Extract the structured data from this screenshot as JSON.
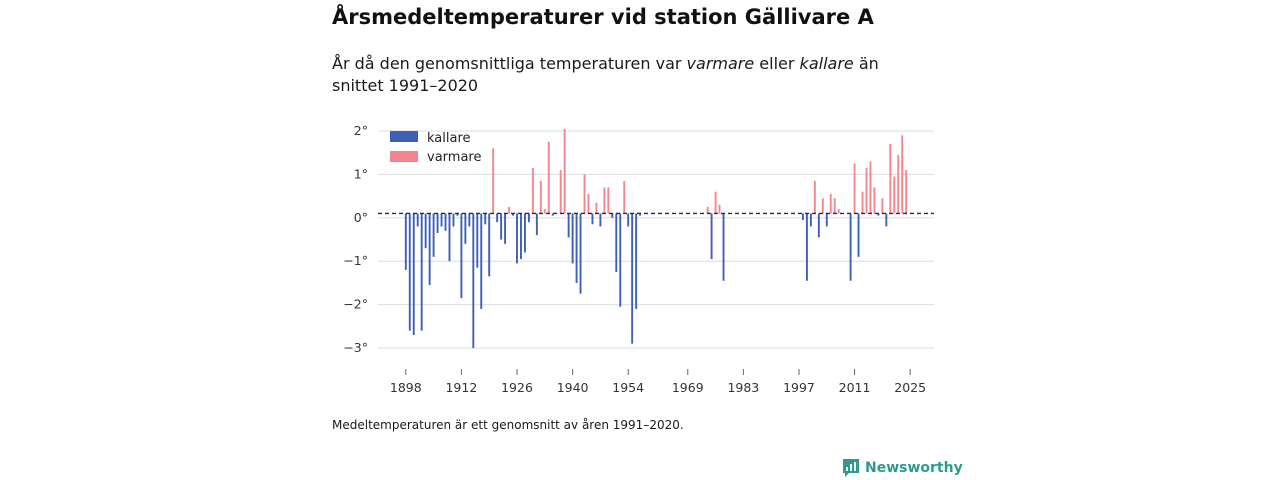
{
  "title": "Årsmedeltemperaturer vid station Gällivare A",
  "subtitle": {
    "part1": "År då den genomsnittliga temperaturen var ",
    "warm_word": "varmare",
    "part2": " eller ",
    "cold_word": "kallare",
    "part3": " än snittet 1991–2020"
  },
  "footnote": "Medeltemperaturen är ett genomsnitt av åren 1991–2020.",
  "brand": "Newsworthy",
  "colors": {
    "warm": "#f4858f",
    "cold": "#3e5fb6",
    "brand": "#2c9a8f"
  },
  "chart_data": {
    "type": "bar",
    "title": "Årsmedeltemperaturer vid station Gällivare A",
    "xlabel": "",
    "ylabel": "",
    "xlim": [
      1891,
      2031
    ],
    "ylim": [
      -3.1,
      2.1
    ],
    "baseline": 0.1,
    "x_ticks": [
      1898,
      1912,
      1926,
      1940,
      1954,
      1969,
      1983,
      1997,
      2011,
      2025
    ],
    "y_ticks": [
      2,
      1,
      0,
      -1,
      -2,
      -3
    ],
    "y_tick_labels": [
      "2°",
      "1°",
      "0°",
      "−1°",
      "−2°",
      "−3°"
    ],
    "legend": [
      {
        "name": "kallare",
        "color": "#3e5fb6"
      },
      {
        "name": "varmare",
        "color": "#f4858f"
      }
    ],
    "legend_position": "top-left",
    "years": [
      1898,
      1899,
      1900,
      1901,
      1902,
      1903,
      1904,
      1905,
      1906,
      1907,
      1908,
      1909,
      1910,
      1911,
      1912,
      1913,
      1914,
      1915,
      1916,
      1917,
      1918,
      1919,
      1920,
      1921,
      1922,
      1923,
      1924,
      1925,
      1926,
      1927,
      1928,
      1929,
      1930,
      1931,
      1932,
      1933,
      1934,
      1935,
      1936,
      1937,
      1938,
      1939,
      1940,
      1941,
      1942,
      1943,
      1944,
      1945,
      1946,
      1947,
      1948,
      1949,
      1950,
      1951,
      1952,
      1953,
      1954,
      1955,
      1956,
      1957,
      1974,
      1975,
      1976,
      1977,
      1978,
      1998,
      1999,
      2000,
      2001,
      2002,
      2003,
      2004,
      2005,
      2006,
      2007,
      2010,
      2011,
      2012,
      2013,
      2014,
      2015,
      2016,
      2017,
      2018,
      2019,
      2020,
      2021,
      2022,
      2023,
      2024
    ],
    "values": [
      -1.2,
      -2.6,
      -2.7,
      -0.2,
      -2.6,
      -0.7,
      -1.55,
      -0.9,
      -0.35,
      -0.2,
      -0.3,
      -1.0,
      -0.2,
      0.05,
      -1.85,
      -0.6,
      -0.2,
      -3.0,
      -1.15,
      -2.1,
      -0.15,
      -1.35,
      1.6,
      -0.1,
      -0.5,
      -0.6,
      0.25,
      0.05,
      -1.05,
      -0.95,
      -0.8,
      -0.1,
      1.15,
      -0.4,
      0.85,
      0.2,
      1.75,
      0.05,
      0.1,
      1.1,
      2.05,
      -0.45,
      -1.05,
      -1.5,
      -1.75,
      1.0,
      0.55,
      -0.15,
      0.35,
      -0.2,
      0.7,
      0.7,
      0.0,
      -1.25,
      -2.05,
      0.85,
      -0.2,
      -2.9,
      -2.1,
      0.05,
      0.25,
      -0.95,
      0.6,
      0.3,
      -1.45,
      -0.05,
      -1.45,
      -0.2,
      0.85,
      -0.45,
      0.45,
      -0.2,
      0.55,
      0.45,
      0.2,
      -1.45,
      1.25,
      -0.9,
      0.6,
      1.15,
      1.3,
      0.7,
      0.05,
      0.45,
      -0.2,
      1.7,
      0.95,
      1.45,
      1.9,
      1.1
    ]
  }
}
